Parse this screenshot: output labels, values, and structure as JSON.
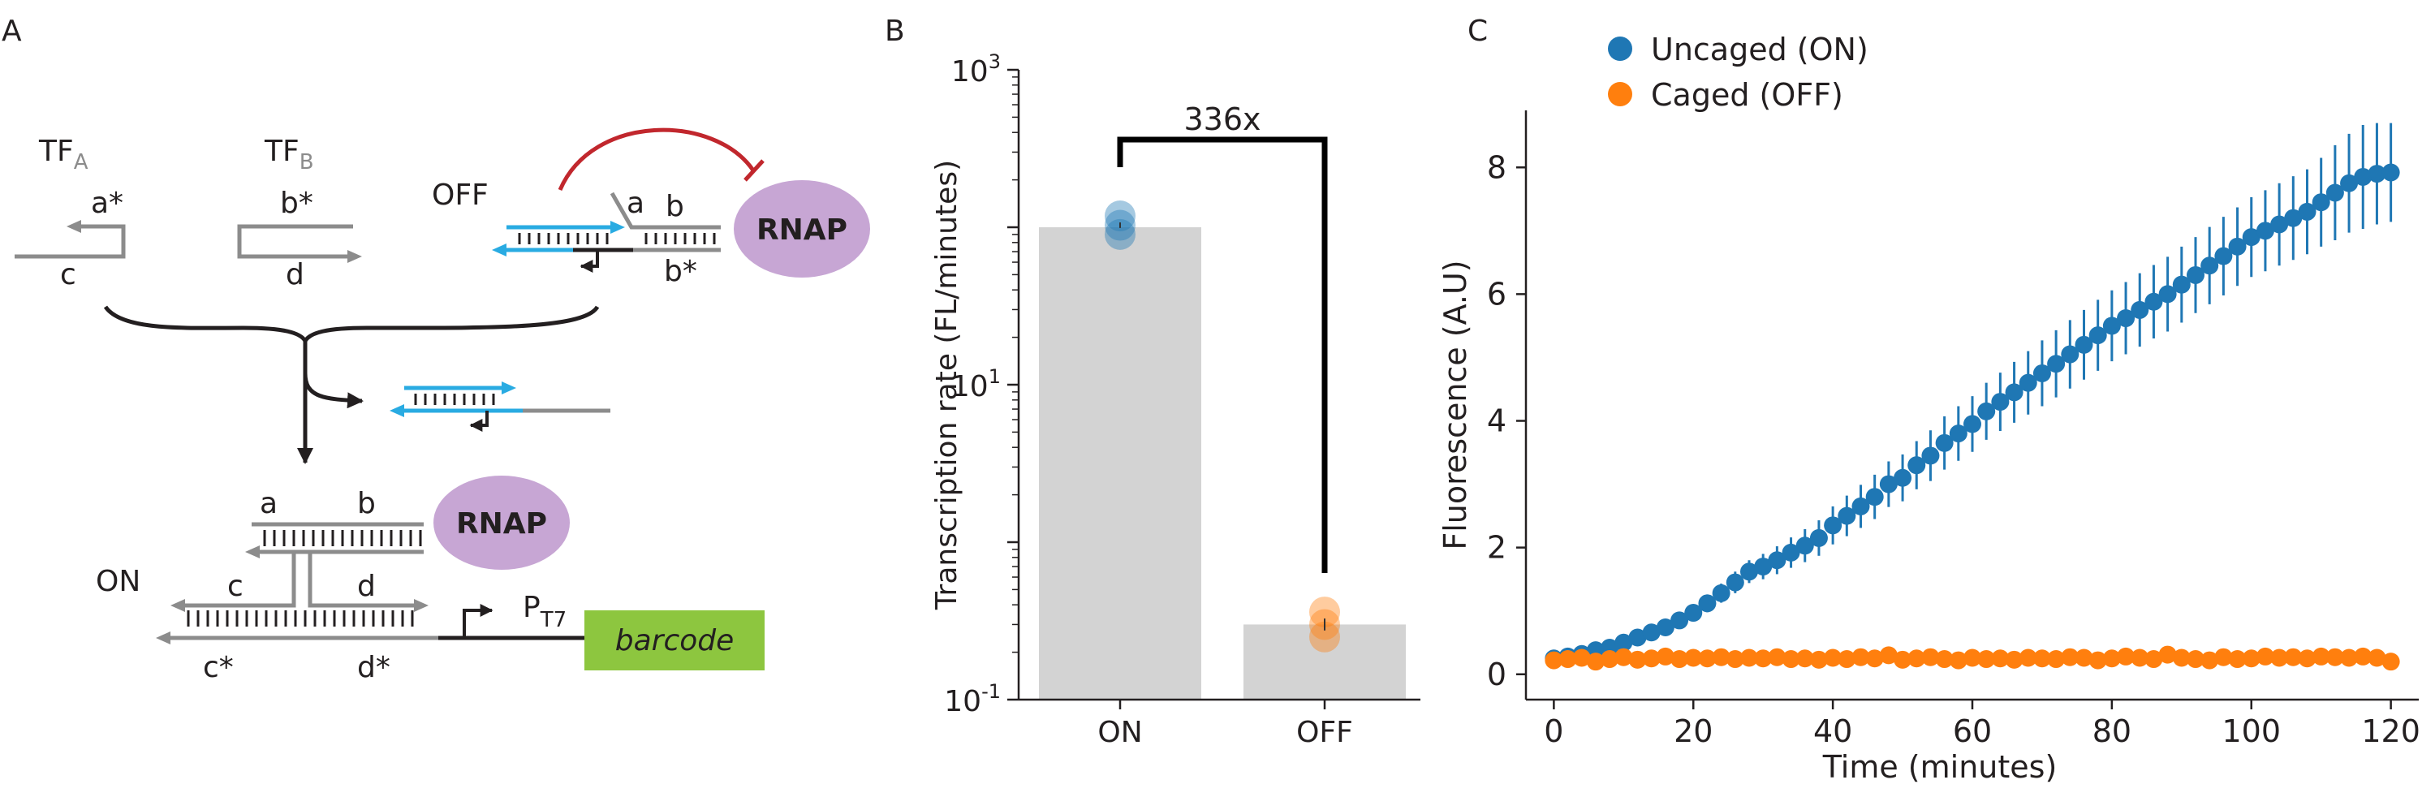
{
  "panels": {
    "a": "A",
    "b": "B",
    "c": "C"
  },
  "panel_a": {
    "tf_a": {
      "main": "TF",
      "sub": "A"
    },
    "tf_b": {
      "main": "TF",
      "sub": "B"
    },
    "state_off": "OFF",
    "state_on": "ON",
    "rnap": "RNAP",
    "barcode": "barcode",
    "promoter": {
      "main": "P",
      "sub": "T7"
    },
    "domains": {
      "a_star": "a*",
      "b_star": "b*",
      "c": "c",
      "d": "d",
      "a": "a",
      "b": "b",
      "c_star": "c*",
      "d_star": "d*"
    },
    "colors": {
      "dna": "#8c8c8c",
      "cage": "#29abe2",
      "inhibit": "#c1272d",
      "rnap": "#c7a6d4",
      "barcode": "#8dc63f"
    }
  },
  "chart_data": [
    {
      "type": "bar",
      "panel": "B",
      "categories": [
        "ON",
        "OFF"
      ],
      "values": [
        100,
        0.3
      ],
      "replicates": [
        [
          118,
          103,
          90
        ],
        [
          0.36,
          0.3,
          0.25
        ]
      ],
      "ylabel": "Transcription rate (FL/minutes)",
      "yscale": "log",
      "ylim": [
        0.1,
        1000
      ],
      "yticks": [
        {
          "value": 0.1,
          "base": "10",
          "exp": "-1"
        },
        {
          "value": 10,
          "base": "10",
          "exp": "1"
        },
        {
          "value": 1000,
          "base": "10",
          "exp": "3"
        }
      ],
      "annotation": "336x",
      "colors": {
        "bar": "#d3d3d3",
        "on": "#1f77b4",
        "off": "#ff7f0e"
      }
    },
    {
      "type": "scatter",
      "panel": "C",
      "xlabel": "Time (minutes)",
      "ylabel": "Fluorescence (A.U)",
      "xlim": [
        -4,
        124
      ],
      "ylim": [
        -0.4,
        8.9
      ],
      "xticks": [
        0,
        20,
        40,
        60,
        80,
        100,
        120
      ],
      "yticks": [
        0,
        2,
        4,
        6,
        8
      ],
      "series": [
        {
          "name": "Uncaged (ON)",
          "color": "#1f77b4",
          "x": [
            0,
            2,
            4,
            6,
            8,
            10,
            12,
            14,
            16,
            18,
            20,
            22,
            24,
            26,
            28,
            30,
            32,
            34,
            36,
            38,
            40,
            42,
            44,
            46,
            48,
            50,
            52,
            54,
            56,
            58,
            60,
            62,
            64,
            66,
            68,
            70,
            72,
            74,
            76,
            78,
            80,
            82,
            84,
            86,
            88,
            90,
            92,
            94,
            96,
            98,
            100,
            102,
            104,
            106,
            108,
            110,
            112,
            114,
            116,
            118,
            120
          ],
          "y": [
            0.25,
            0.28,
            0.32,
            0.38,
            0.42,
            0.5,
            0.58,
            0.66,
            0.74,
            0.85,
            0.97,
            1.12,
            1.28,
            1.45,
            1.62,
            1.7,
            1.8,
            1.92,
            2.03,
            2.15,
            2.35,
            2.5,
            2.65,
            2.8,
            3.0,
            3.1,
            3.3,
            3.45,
            3.65,
            3.8,
            3.95,
            4.15,
            4.3,
            4.45,
            4.6,
            4.75,
            4.9,
            5.05,
            5.2,
            5.35,
            5.5,
            5.62,
            5.75,
            5.88,
            6.0,
            6.15,
            6.3,
            6.45,
            6.6,
            6.75,
            6.9,
            7.0,
            7.1,
            7.2,
            7.3,
            7.45,
            7.6,
            7.75,
            7.85,
            7.9,
            7.92
          ],
          "err": [
            0.04,
            0.05,
            0.05,
            0.06,
            0.07,
            0.08,
            0.09,
            0.1,
            0.11,
            0.12,
            0.13,
            0.14,
            0.15,
            0.17,
            0.18,
            0.2,
            0.22,
            0.24,
            0.26,
            0.28,
            0.3,
            0.32,
            0.34,
            0.35,
            0.36,
            0.37,
            0.38,
            0.4,
            0.42,
            0.43,
            0.44,
            0.45,
            0.46,
            0.48,
            0.5,
            0.52,
            0.53,
            0.54,
            0.55,
            0.56,
            0.56,
            0.57,
            0.58,
            0.58,
            0.59,
            0.6,
            0.6,
            0.61,
            0.62,
            0.62,
            0.63,
            0.64,
            0.65,
            0.66,
            0.67,
            0.7,
            0.75,
            0.78,
            0.82,
            0.8,
            0.78
          ]
        },
        {
          "name": "Caged (OFF)",
          "color": "#ff7f0e",
          "x": [
            0,
            2,
            4,
            6,
            8,
            10,
            12,
            14,
            16,
            18,
            20,
            22,
            24,
            26,
            28,
            30,
            32,
            34,
            36,
            38,
            40,
            42,
            44,
            46,
            48,
            50,
            52,
            54,
            56,
            58,
            60,
            62,
            64,
            66,
            68,
            70,
            72,
            74,
            76,
            78,
            80,
            82,
            84,
            86,
            88,
            90,
            92,
            94,
            96,
            98,
            100,
            102,
            104,
            106,
            108,
            110,
            112,
            114,
            116,
            118,
            120
          ],
          "y": [
            0.22,
            0.24,
            0.26,
            0.2,
            0.24,
            0.27,
            0.23,
            0.25,
            0.28,
            0.24,
            0.26,
            0.25,
            0.27,
            0.24,
            0.26,
            0.25,
            0.27,
            0.24,
            0.25,
            0.23,
            0.26,
            0.24,
            0.27,
            0.25,
            0.3,
            0.23,
            0.25,
            0.27,
            0.24,
            0.22,
            0.26,
            0.24,
            0.25,
            0.23,
            0.26,
            0.25,
            0.24,
            0.27,
            0.26,
            0.22,
            0.25,
            0.28,
            0.26,
            0.24,
            0.31,
            0.26,
            0.24,
            0.22,
            0.27,
            0.24,
            0.25,
            0.28,
            0.26,
            0.27,
            0.25,
            0.28,
            0.27,
            0.26,
            0.28,
            0.26,
            0.2
          ],
          "err": [
            0.06,
            0.06,
            0.06,
            0.06,
            0.06,
            0.06,
            0.06,
            0.06,
            0.06,
            0.06,
            0.06,
            0.06,
            0.06,
            0.06,
            0.06,
            0.06,
            0.06,
            0.06,
            0.06,
            0.06,
            0.06,
            0.06,
            0.06,
            0.06,
            0.06,
            0.06,
            0.06,
            0.06,
            0.06,
            0.06,
            0.06,
            0.06,
            0.06,
            0.06,
            0.06,
            0.06,
            0.06,
            0.06,
            0.06,
            0.06,
            0.06,
            0.06,
            0.06,
            0.06,
            0.06,
            0.06,
            0.06,
            0.06,
            0.06,
            0.06,
            0.06,
            0.06,
            0.06,
            0.06,
            0.06,
            0.06,
            0.06,
            0.06,
            0.06,
            0.06,
            0.06
          ]
        }
      ]
    }
  ]
}
